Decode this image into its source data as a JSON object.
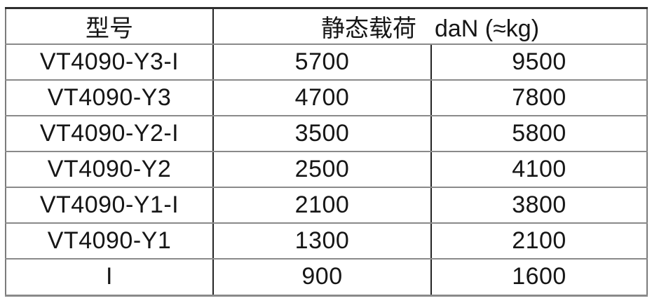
{
  "colors": {
    "background": "#ffffff",
    "text": "#161616",
    "grid_horizontal": "#8a8a8a",
    "grid_vertical": "#242424"
  },
  "chart_data": {
    "type": "table",
    "title": "",
    "header": {
      "model_label": "型号",
      "load_label_cn": "静态载荷",
      "load_unit": "daN (≈kg)"
    },
    "layout": {
      "columns": 3,
      "load_header_colspan": 2,
      "grid": "on"
    },
    "rows": [
      {
        "model": "VT4090-Y3-I",
        "dan": "5700",
        "kg": "9500"
      },
      {
        "model": "VT4090-Y3",
        "dan": "4700",
        "kg": "7800"
      },
      {
        "model": "VT4090-Y2-I",
        "dan": "3500",
        "kg": "5800"
      },
      {
        "model": "VT4090-Y2",
        "dan": "2500",
        "kg": "4100"
      },
      {
        "model": "VT4090-Y1-I",
        "dan": "2100",
        "kg": "3800"
      },
      {
        "model": "VT4090-Y1",
        "dan": "1300",
        "kg": "2100"
      },
      {
        "model": "I",
        "dan": "900",
        "kg": "1600"
      }
    ]
  }
}
